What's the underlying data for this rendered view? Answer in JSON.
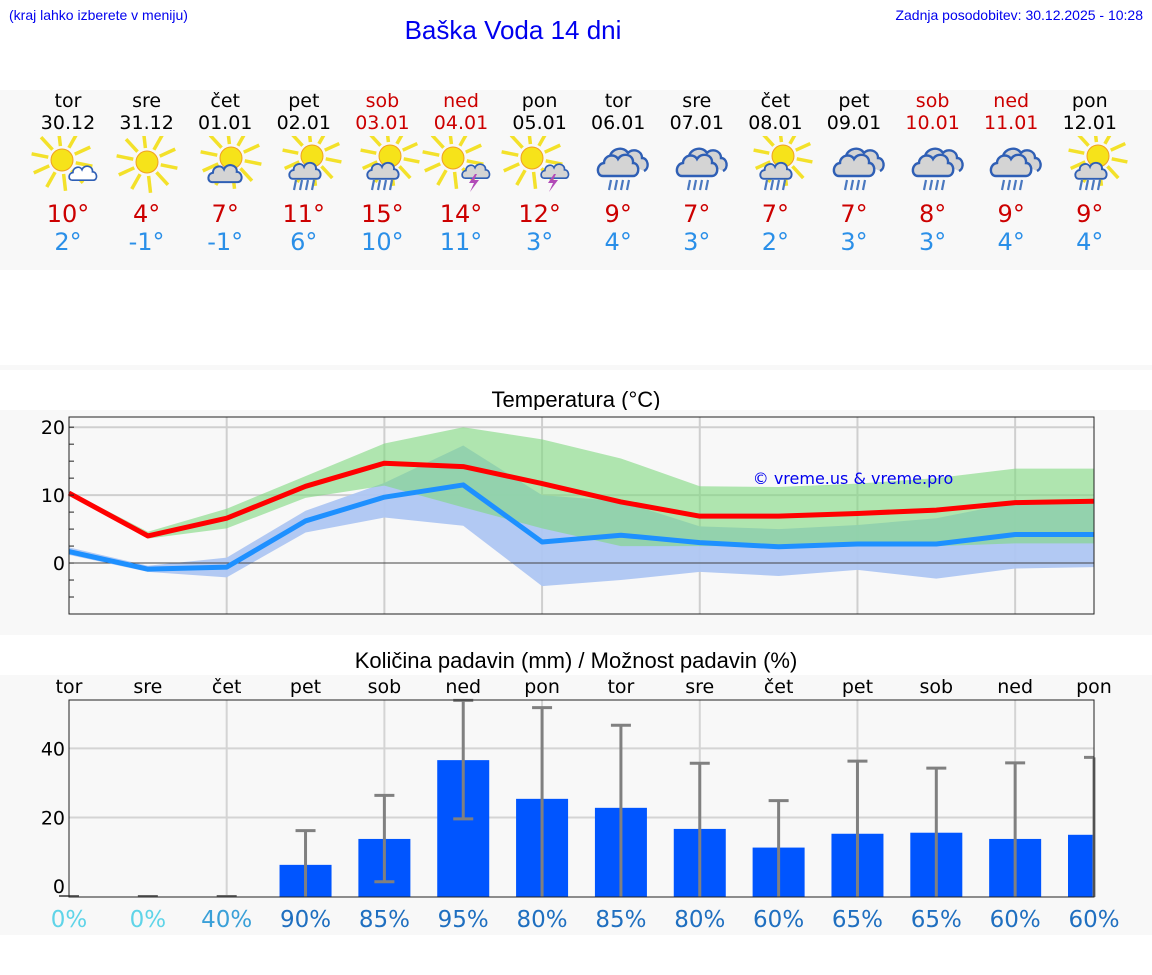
{
  "header": {
    "menu_hint": "(kraj lahko izberete v meniju)",
    "title": "Baška Voda 14 dni",
    "last_update": "Zadnja posodobitev: 30.12.2025 - 10:28"
  },
  "forecast": {
    "days": [
      {
        "day": "tor",
        "date": "30.12",
        "weekend": false,
        "icon": "sun-with-small-cloud-icon",
        "tmax": "10°",
        "tmin": "2°"
      },
      {
        "day": "sre",
        "date": "31.12",
        "weekend": false,
        "icon": "sun-icon",
        "tmax": "4°",
        "tmin": "-1°"
      },
      {
        "day": "čet",
        "date": "01.01",
        "weekend": false,
        "icon": "partly-cloudy-icon",
        "tmax": "7°",
        "tmin": "-1°"
      },
      {
        "day": "pet",
        "date": "02.01",
        "weekend": false,
        "icon": "sun-cloud-rain-icon",
        "tmax": "11°",
        "tmin": "6°"
      },
      {
        "day": "sob",
        "date": "03.01",
        "weekend": true,
        "icon": "sun-cloud-rain-icon",
        "tmax": "15°",
        "tmin": "10°"
      },
      {
        "day": "ned",
        "date": "04.01",
        "weekend": true,
        "icon": "sun-thunderstorm-icon",
        "tmax": "14°",
        "tmin": "11°"
      },
      {
        "day": "pon",
        "date": "05.01",
        "weekend": false,
        "icon": "sun-thunderstorm-icon",
        "tmax": "12°",
        "tmin": "3°"
      },
      {
        "day": "tor",
        "date": "06.01",
        "weekend": false,
        "icon": "cloud-rain-icon",
        "tmax": "9°",
        "tmin": "4°"
      },
      {
        "day": "sre",
        "date": "07.01",
        "weekend": false,
        "icon": "cloud-rain-icon",
        "tmax": "7°",
        "tmin": "3°"
      },
      {
        "day": "čet",
        "date": "08.01",
        "weekend": false,
        "icon": "sun-cloud-rain-icon",
        "tmax": "7°",
        "tmin": "2°"
      },
      {
        "day": "pet",
        "date": "09.01",
        "weekend": false,
        "icon": "cloud-rain-icon",
        "tmax": "7°",
        "tmin": "3°"
      },
      {
        "day": "sob",
        "date": "10.01",
        "weekend": true,
        "icon": "cloud-rain-icon",
        "tmax": "8°",
        "tmin": "3°"
      },
      {
        "day": "ned",
        "date": "11.01",
        "weekend": true,
        "icon": "cloud-rain-icon",
        "tmax": "9°",
        "tmin": "4°"
      },
      {
        "day": "pon",
        "date": "12.01",
        "weekend": false,
        "icon": "sun-cloud-rain-icon",
        "tmax": "9°",
        "tmin": "4°"
      }
    ]
  },
  "colors": {
    "max_line": "#ff0000",
    "min_line": "#1e90ff",
    "max_band": "#aee8ae",
    "min_band": "#aec6f2",
    "overlap_band": "#7cc8a8",
    "bar": "#0055ff",
    "error_bar": "#808080",
    "weekend_text": "#cc0000",
    "link_text": "#0000ee"
  },
  "chart_data": [
    {
      "type": "line",
      "title": "Temperatura (°C)",
      "xlabel": "",
      "ylabel": "",
      "ylim": [
        -7.5,
        21.5
      ],
      "yticks": [
        0,
        10,
        20
      ],
      "grid": true,
      "watermark": "© vreme.us & vreme.pro",
      "categories": [
        "30.12",
        "31.12",
        "01.01",
        "02.01",
        "03.01",
        "04.01",
        "05.01",
        "06.01",
        "07.01",
        "08.01",
        "09.01",
        "10.01",
        "11.01",
        "12.01"
      ],
      "series": [
        {
          "name": "max",
          "color": "#ff0000",
          "values": [
            10.3,
            4.0,
            6.6,
            11.3,
            14.7,
            14.2,
            11.7,
            9.0,
            6.9,
            6.9,
            7.3,
            7.8,
            8.9,
            9.1
          ]
        },
        {
          "name": "min",
          "color": "#1e90ff",
          "values": [
            1.7,
            -0.9,
            -0.6,
            6.2,
            9.7,
            11.5,
            3.1,
            4.1,
            3.0,
            2.4,
            2.8,
            2.8,
            4.2,
            4.2
          ]
        },
        {
          "name": "max_range_low",
          "values": [
            10.0,
            3.6,
            5.1,
            9.6,
            11.4,
            8.2,
            5.1,
            2.5,
            2.5,
            2.5,
            2.5,
            2.5,
            2.9,
            2.9
          ]
        },
        {
          "name": "max_range_high",
          "values": [
            10.6,
            4.6,
            8.0,
            12.8,
            17.6,
            20.0,
            18.2,
            15.4,
            11.3,
            11.2,
            11.7,
            12.5,
            13.9,
            13.9
          ]
        },
        {
          "name": "min_range_low",
          "values": [
            1.2,
            -1.3,
            -2.1,
            4.5,
            6.7,
            5.5,
            -3.4,
            -2.5,
            -1.3,
            -1.9,
            -1.0,
            -2.3,
            -0.8,
            -0.6
          ]
        },
        {
          "name": "min_range_high",
          "values": [
            2.3,
            -0.4,
            0.8,
            7.7,
            11.8,
            17.3,
            10.0,
            9.1,
            5.4,
            5.0,
            5.6,
            6.6,
            8.9,
            8.9
          ]
        }
      ]
    },
    {
      "type": "bar",
      "title": "Količina padavin (mm) / Možnost padavin (%)",
      "xlabel": "",
      "ylabel": "",
      "ylim": [
        -3,
        54
      ],
      "yticks": [
        0,
        20,
        40
      ],
      "grid": true,
      "categories": [
        "tor",
        "sre",
        "čet",
        "pet",
        "sob",
        "ned",
        "pon",
        "tor",
        "sre",
        "čet",
        "pet",
        "sob",
        "ned",
        "pon"
      ],
      "series": [
        {
          "name": "Količina padavin (mm)",
          "color": "#0055ff",
          "values": [
            0,
            0,
            0,
            6.3,
            13.8,
            36.6,
            25.4,
            22.8,
            16.7,
            11.3,
            15.3,
            15.6,
            13.8,
            15.0
          ]
        },
        {
          "name": "error_low",
          "values": [
            0,
            0,
            0,
            0,
            1.4,
            19.6,
            0,
            0,
            0,
            0,
            0,
            0,
            0,
            0
          ]
        },
        {
          "name": "error_high",
          "values": [
            0,
            0,
            0,
            16.2,
            26.4,
            53.9,
            51.8,
            46.7,
            35.7,
            24.9,
            36.3,
            34.3,
            35.8,
            37.4
          ]
        }
      ],
      "probability_pct": [
        "0%",
        "0%",
        "40%",
        "90%",
        "85%",
        "95%",
        "80%",
        "85%",
        "80%",
        "60%",
        "65%",
        "65%",
        "60%",
        "60%"
      ]
    }
  ]
}
